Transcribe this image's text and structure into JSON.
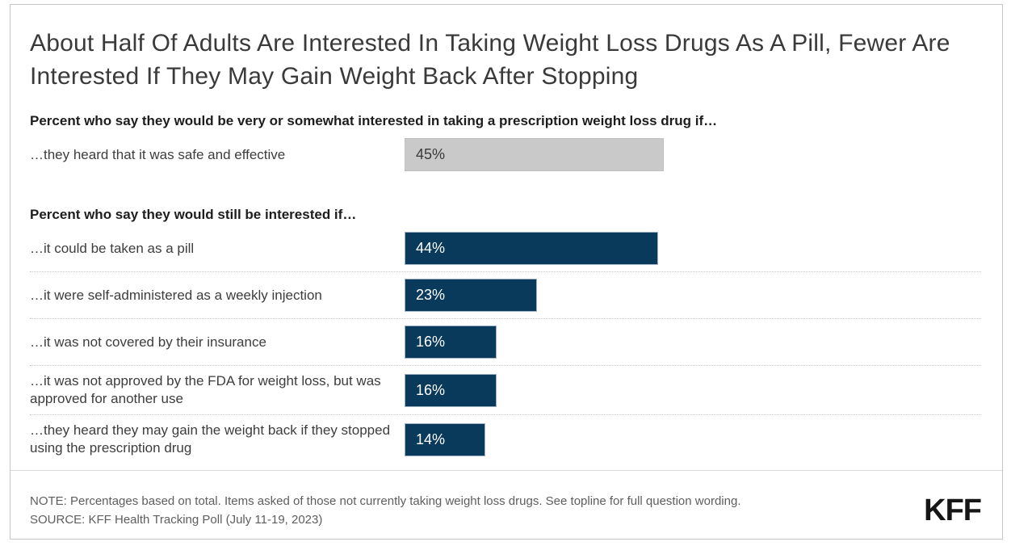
{
  "header": {
    "title": "About Half Of Adults Are Interested In Taking Weight Loss Drugs As A Pill, Fewer Are Interested If They May Gain Weight Back After Stopping"
  },
  "chart_data": {
    "type": "bar",
    "orientation": "horizontal",
    "value_axis": {
      "min": 0,
      "max": 100,
      "unit": "%",
      "axis_visible": false,
      "grid": false
    },
    "colors": {
      "highlight_gray": "#c9c9c9",
      "navy": "#093a5c"
    },
    "groups": [
      {
        "heading": "Percent who say they would be very or somewhat interested in taking a prescription weight loss drug if…",
        "bars": [
          {
            "label": "…they heard that it was safe and effective",
            "value": 45,
            "value_label": "45%",
            "bar_color": "#c9c9c9",
            "value_text_color": "#3a3a3a"
          }
        ]
      },
      {
        "heading": "Percent who say they would still be interested if…",
        "bars": [
          {
            "label": "…it could be taken as a pill",
            "value": 44,
            "value_label": "44%",
            "bar_color": "#093a5c",
            "value_text_color": "#ffffff"
          },
          {
            "label": "…it were self-administered as a weekly injection",
            "value": 23,
            "value_label": "23%",
            "bar_color": "#093a5c",
            "value_text_color": "#ffffff"
          },
          {
            "label": "…it was not covered by their insurance",
            "value": 16,
            "value_label": "16%",
            "bar_color": "#093a5c",
            "value_text_color": "#ffffff"
          },
          {
            "label": "…it was not approved by the FDA for weight loss, but was approved for another use",
            "value": 16,
            "value_label": "16%",
            "bar_color": "#093a5c",
            "value_text_color": "#ffffff"
          },
          {
            "label": "…they heard they may gain the weight back if they stopped using the prescription drug",
            "value": 14,
            "value_label": "14%",
            "bar_color": "#093a5c",
            "value_text_color": "#ffffff"
          }
        ]
      }
    ]
  },
  "footer": {
    "note": "NOTE: Percentages based on total. Items asked of those not currently taking weight loss drugs. See topline for full question wording.",
    "source": "SOURCE: KFF Health Tracking Poll (July 11-19, 2023)",
    "logo": "KFF"
  }
}
